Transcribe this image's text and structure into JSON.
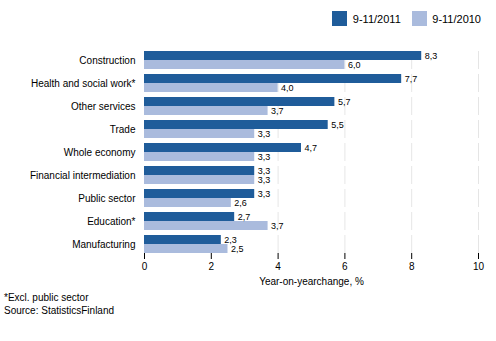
{
  "chart_data": {
    "type": "bar",
    "orientation": "horizontal",
    "categories": [
      "Construction",
      "Health and social work*",
      "Other services",
      "Trade",
      "Whole economy",
      "Financial intermediation",
      "Public sector",
      "Education*",
      "Manufacturing"
    ],
    "series": [
      {
        "name": "9-11/2011",
        "color": "#1F5C9A",
        "values": [
          8.3,
          7.7,
          5.7,
          5.5,
          4.7,
          3.3,
          3.3,
          2.7,
          2.3
        ],
        "value_labels": [
          "8,3",
          "7,7",
          "5,7",
          "5,5",
          "4,7",
          "3,3",
          "3,3",
          "2,7",
          "2,3"
        ]
      },
      {
        "name": "9-11/2010",
        "color": "#AABBDD",
        "values": [
          6.0,
          4.0,
          3.7,
          3.3,
          3.3,
          3.3,
          2.6,
          3.7,
          2.5
        ],
        "value_labels": [
          "6,0",
          "4,0",
          "3,7",
          "3,3",
          "3,3",
          "3,3",
          "2,6",
          "3,7",
          "2,5"
        ]
      }
    ],
    "xlabel": "Year-on-yearchange, %",
    "xlim": [
      0,
      10
    ],
    "xticks": [
      0,
      2,
      4,
      6,
      8,
      10
    ],
    "grid": true,
    "legend": "right",
    "data_labels": true,
    "annotations": [
      "*Excl. public sector",
      "Source: StatisticsFinland"
    ]
  }
}
